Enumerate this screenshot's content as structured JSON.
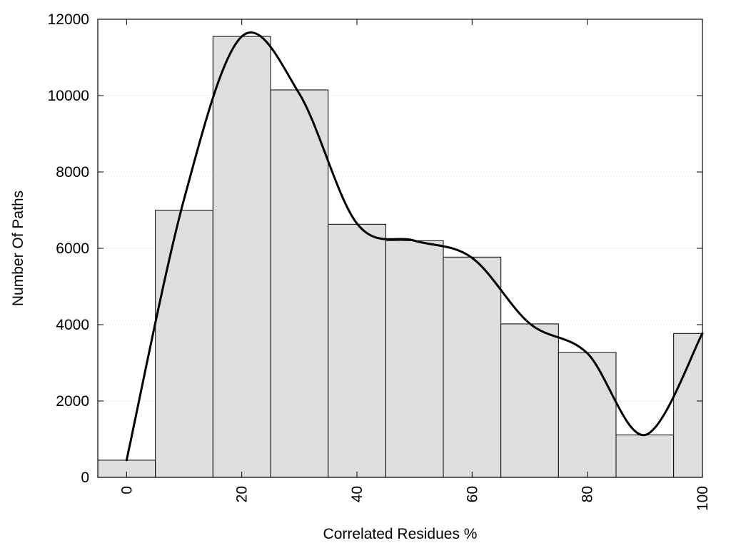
{
  "chart_data": {
    "type": "bar",
    "title": "",
    "xlabel": "Correlated Residues %",
    "ylabel": "Number Of Paths",
    "xlim": [
      -5,
      100
    ],
    "ylim": [
      0,
      12000
    ],
    "xticks": [
      0,
      20,
      40,
      60,
      80,
      100
    ],
    "yticks": [
      0,
      2000,
      4000,
      6000,
      8000,
      10000,
      12000
    ],
    "grid": "horizontal dotted",
    "legend": "none",
    "bar_width": 10,
    "bars": {
      "x": [
        0,
        10,
        20,
        30,
        40,
        50,
        60,
        70,
        80,
        90,
        100
      ],
      "values": [
        450,
        7000,
        11550,
        10150,
        6630,
        6200,
        5770,
        4020,
        3270,
        1110,
        3770
      ]
    },
    "curve": {
      "x": [
        0,
        10,
        20,
        30,
        40,
        50,
        60,
        70,
        80,
        90,
        100
      ],
      "values": [
        450,
        7300,
        11550,
        10050,
        6650,
        6200,
        5750,
        4030,
        3250,
        1110,
        3770
      ]
    },
    "colors": {
      "bar_fill": "#dedede",
      "bar_stroke": "#000000",
      "curve": "#000000",
      "grid": "#c8c8c8"
    }
  }
}
